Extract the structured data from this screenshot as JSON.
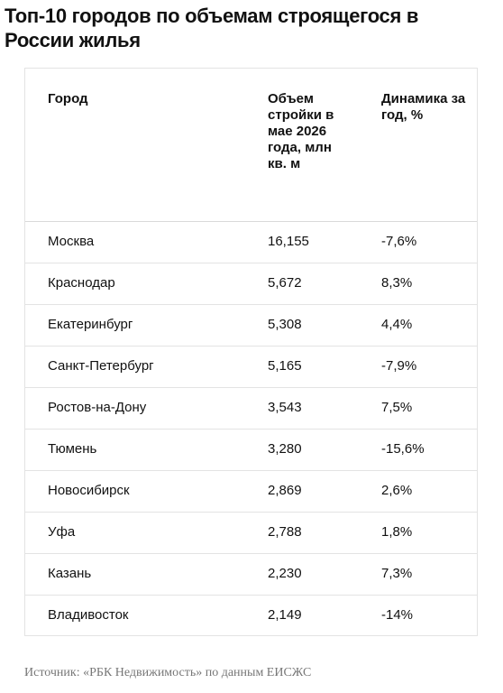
{
  "header": {
    "title": "Топ-10 городов по объемам строящегося в России жилья"
  },
  "table": {
    "columns": [
      "Город",
      "Объем стройки в мае 2026 года, млн кв. м",
      "Динамика за год, %"
    ],
    "rows": [
      [
        "Москва",
        "16,155",
        "-7,6%"
      ],
      [
        "Краснодар",
        "5,672",
        "8,3%"
      ],
      [
        "Екатеринбург",
        "5,308",
        "4,4%"
      ],
      [
        "Санкт-Петербург",
        "5,165",
        "-7,9%"
      ],
      [
        "Ростов-на-Дону",
        "3,543",
        "7,5%"
      ],
      [
        "Тюмень",
        "3,280",
        "-15,6%"
      ],
      [
        "Новосибирск",
        "2,869",
        "2,6%"
      ],
      [
        "Уфа",
        "2,788",
        "1,8%"
      ],
      [
        "Казань",
        "2,230",
        "7,3%"
      ],
      [
        "Владивосток",
        "2,149",
        "-14%"
      ]
    ]
  },
  "footer": {
    "source": "Источник: «РБК Недвижимость» по данным ЕИСЖС"
  }
}
